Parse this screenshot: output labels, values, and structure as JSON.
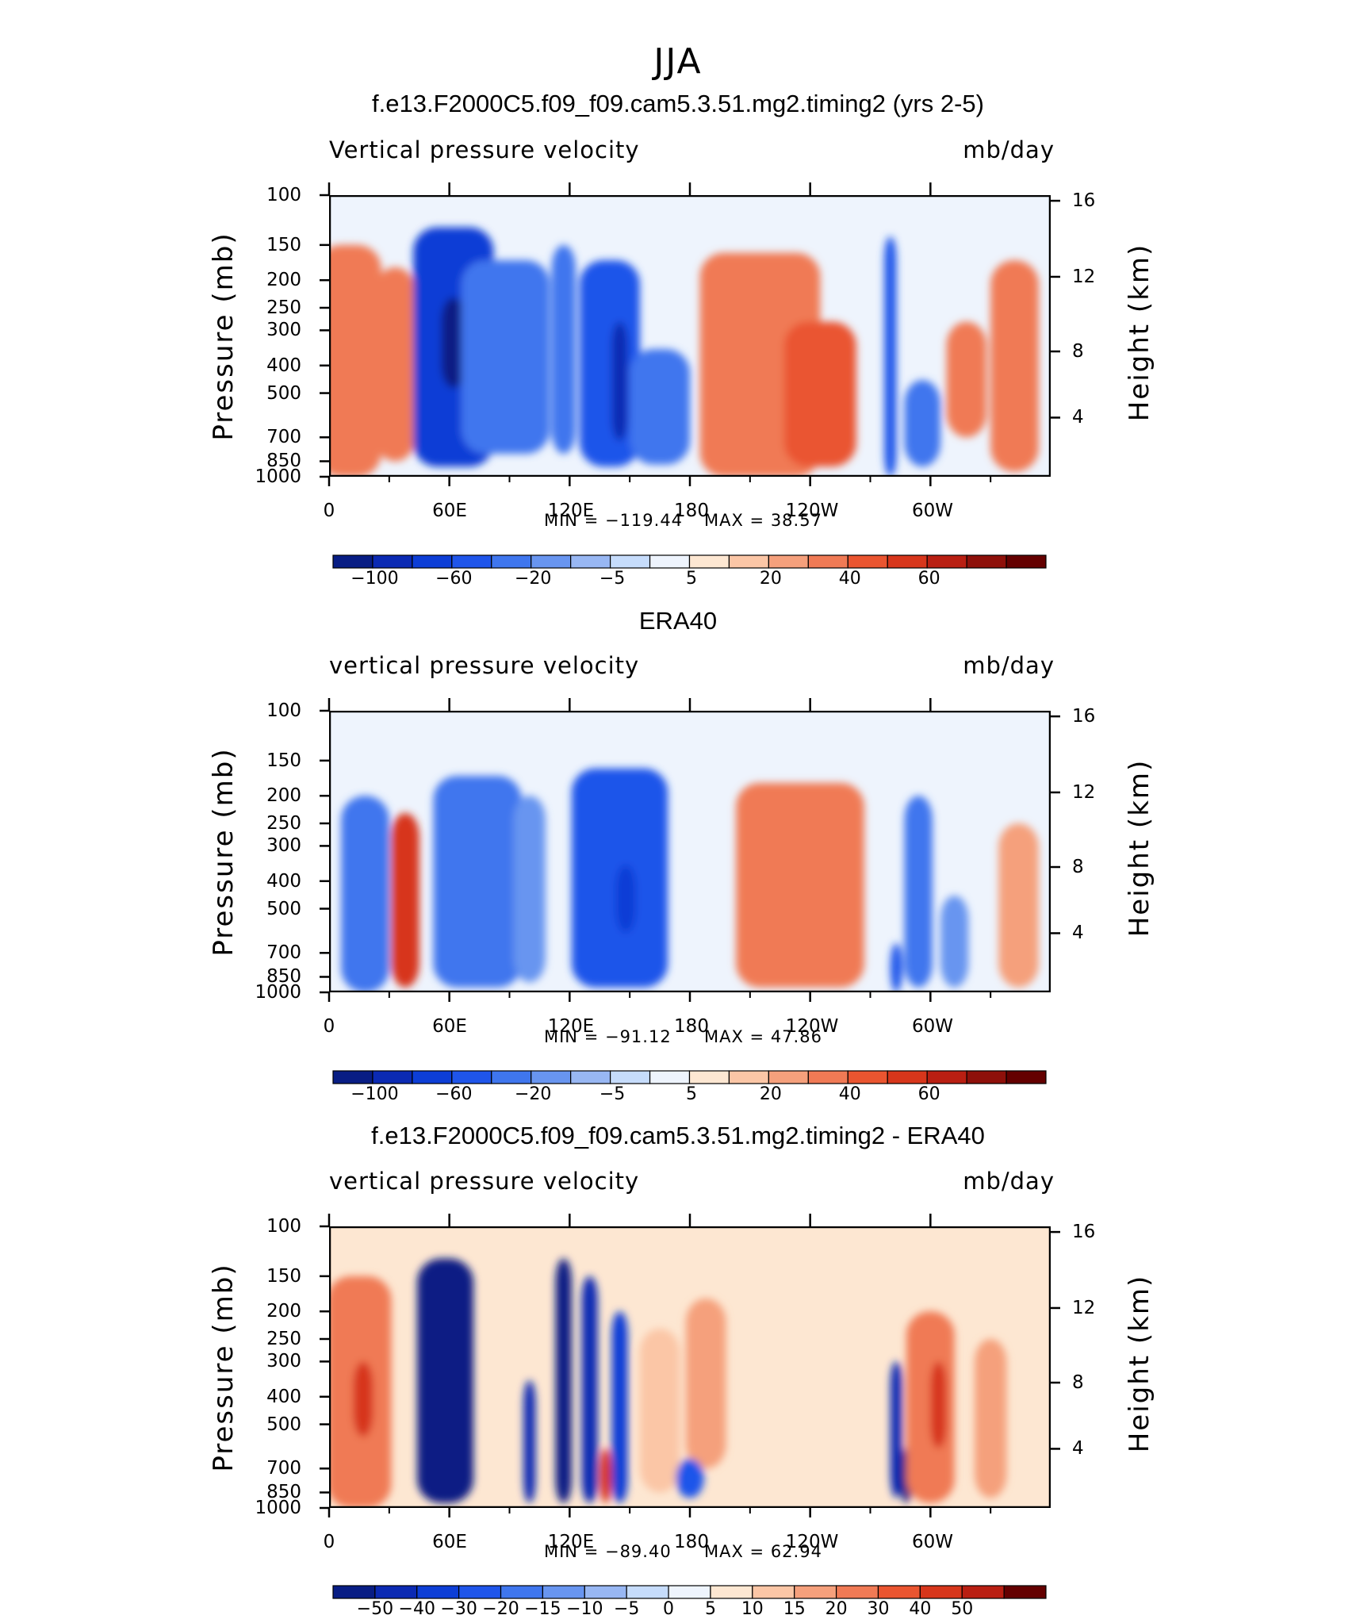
{
  "figure": {
    "title": "JJA"
  },
  "chart_data": [
    {
      "type": "heatmap",
      "title": "f.e13.F2000C5.f09_f09.cam5.3.51.mg2.timing2 (yrs 2-5)",
      "variable_label": "Vertical pressure velocity",
      "units": "mb/day",
      "xlabel": "",
      "ylabel": "Pressure (mb)",
      "y2label": "Height (km)",
      "x_ticklabels": [
        "0",
        "60E",
        "120E",
        "180",
        "120W",
        "60W"
      ],
      "y_ticklabels": [
        "100",
        "150",
        "200",
        "250",
        "300",
        "400",
        "500",
        "700",
        "850",
        "1000"
      ],
      "y2_ticklabels": [
        "16",
        "12",
        "8",
        "4"
      ],
      "min_label": "MIN = −119.44",
      "max_label": "MAX = 38.57",
      "colorbar_labels": [
        "−100",
        "−60",
        "−20",
        "−5",
        "5",
        "20",
        "40",
        "60"
      ],
      "colorbar_colors": [
        "#081d84",
        "#0b2ab3",
        "#0d3ed6",
        "#1f55ea",
        "#3f76ee",
        "#6895f0",
        "#98b7f3",
        "#c6dcfb",
        "#eef4fd",
        "#fde7d2",
        "#fbc6a6",
        "#f5a07c",
        "#f07a55",
        "#ea5530",
        "#d7361b",
        "#b91f12",
        "#8e100a",
        "#640000"
      ],
      "features": [
        {
          "lon": 10,
          "p0": 150,
          "p1": 1000,
          "v": 25,
          "w": 16
        },
        {
          "lon": 33,
          "p0": 180,
          "p1": 850,
          "v": 28,
          "w": 10
        },
        {
          "lon": 62,
          "p0": 130,
          "p1": 900,
          "v": -80,
          "w": 20
        },
        {
          "lon": 62,
          "p0": 230,
          "p1": 480,
          "v": -115,
          "w": 6
        },
        {
          "lon": 88,
          "p0": 170,
          "p1": 800,
          "v": -45,
          "w": 22
        },
        {
          "lon": 117,
          "p0": 150,
          "p1": 800,
          "v": -50,
          "w": 6
        },
        {
          "lon": 140,
          "p0": 170,
          "p1": 900,
          "v": -70,
          "w": 15
        },
        {
          "lon": 145,
          "p0": 280,
          "p1": 720,
          "v": -100,
          "w": 4
        },
        {
          "lon": 165,
          "p0": 350,
          "p1": 880,
          "v": -40,
          "w": 15
        },
        {
          "lon": 215,
          "p0": 160,
          "p1": 1000,
          "v": 28,
          "w": 30
        },
        {
          "lon": 245,
          "p0": 280,
          "p1": 900,
          "v": 34,
          "w": 18
        },
        {
          "lon": 280,
          "p0": 140,
          "p1": 1000,
          "v": -65,
          "w": 3
        },
        {
          "lon": 296,
          "p0": 450,
          "p1": 900,
          "v": -55,
          "w": 9
        },
        {
          "lon": 318,
          "p0": 280,
          "p1": 700,
          "v": 30,
          "w": 10
        },
        {
          "lon": 342,
          "p0": 170,
          "p1": 950,
          "v": 30,
          "w": 12
        }
      ]
    },
    {
      "type": "heatmap",
      "title": "ERA40",
      "variable_label": "vertical pressure velocity",
      "units": "mb/day",
      "xlabel": "",
      "ylabel": "Pressure (mb)",
      "y2label": "Height (km)",
      "x_ticklabels": [
        "0",
        "60E",
        "120E",
        "180",
        "120W",
        "60W"
      ],
      "y_ticklabels": [
        "100",
        "150",
        "200",
        "250",
        "300",
        "400",
        "500",
        "700",
        "850",
        "1000"
      ],
      "y2_ticklabels": [
        "16",
        "12",
        "8",
        "4"
      ],
      "min_label": "MIN = −91.12",
      "max_label": "MAX = 47.86",
      "colorbar_labels": [
        "−100",
        "−60",
        "−20",
        "−5",
        "5",
        "20",
        "40",
        "60"
      ],
      "colorbar_colors": [
        "#081d84",
        "#0b2ab3",
        "#0d3ed6",
        "#1f55ea",
        "#3f76ee",
        "#6895f0",
        "#98b7f3",
        "#c6dcfb",
        "#eef4fd",
        "#fde7d2",
        "#fbc6a6",
        "#f5a07c",
        "#f07a55",
        "#ea5530",
        "#d7361b",
        "#b91f12",
        "#8e100a",
        "#640000"
      ],
      "features": [
        {
          "lon": 18,
          "p0": 200,
          "p1": 1000,
          "v": -40,
          "w": 12
        },
        {
          "lon": 38,
          "p0": 230,
          "p1": 950,
          "v": 45,
          "w": 7
        },
        {
          "lon": 74,
          "p0": 170,
          "p1": 950,
          "v": -50,
          "w": 22
        },
        {
          "lon": 100,
          "p0": 200,
          "p1": 900,
          "v": -30,
          "w": 8
        },
        {
          "lon": 145,
          "p0": 160,
          "p1": 950,
          "v": -65,
          "w": 24
        },
        {
          "lon": 148,
          "p0": 350,
          "p1": 600,
          "v": -90,
          "w": 5
        },
        {
          "lon": 235,
          "p0": 180,
          "p1": 950,
          "v": 22,
          "w": 32
        },
        {
          "lon": 240,
          "p0": 280,
          "p1": 950,
          "v": 30,
          "w": 10
        },
        {
          "lon": 283,
          "p0": 650,
          "p1": 1000,
          "v": -70,
          "w": 3
        },
        {
          "lon": 294,
          "p0": 200,
          "p1": 950,
          "v": -45,
          "w": 7
        },
        {
          "lon": 312,
          "p0": 450,
          "p1": 950,
          "v": -35,
          "w": 7
        },
        {
          "lon": 344,
          "p0": 250,
          "p1": 950,
          "v": 20,
          "w": 10
        }
      ]
    },
    {
      "type": "heatmap",
      "title": "f.e13.F2000C5.f09_f09.cam5.3.51.mg2.timing2 - ERA40",
      "variable_label": "vertical pressure velocity",
      "units": "mb/day",
      "xlabel": "",
      "ylabel": "Pressure (mb)",
      "y2label": "Height (km)",
      "x_ticklabels": [
        "0",
        "60E",
        "120E",
        "180",
        "120W",
        "60W"
      ],
      "y_ticklabels": [
        "100",
        "150",
        "200",
        "250",
        "300",
        "400",
        "500",
        "700",
        "850",
        "1000"
      ],
      "y2_ticklabels": [
        "16",
        "12",
        "8",
        "4"
      ],
      "min_label": "MIN = −89.40",
      "max_label": "MAX = 62.94",
      "colorbar_labels": [
        "−50",
        "−40",
        "−30",
        "−20",
        "−15",
        "−10",
        "−5",
        "0",
        "5",
        "10",
        "15",
        "20",
        "30",
        "40",
        "50"
      ],
      "colorbar_colors": [
        "#081d84",
        "#0b2ab3",
        "#0d3ed6",
        "#1f55ea",
        "#3f76ee",
        "#6895f0",
        "#98b7f3",
        "#c6dcfb",
        "#eef4fd",
        "#fde7d2",
        "#fbc6a6",
        "#f5a07c",
        "#f07a55",
        "#ea5530",
        "#d7361b",
        "#b91f12",
        "#640000"
      ],
      "features": [
        {
          "lon": 15,
          "p0": 150,
          "p1": 1000,
          "v": 30,
          "w": 16
        },
        {
          "lon": 17,
          "p0": 300,
          "p1": 550,
          "v": 45,
          "w": 5
        },
        {
          "lon": 58,
          "p0": 130,
          "p1": 950,
          "v": -55,
          "w": 14
        },
        {
          "lon": 60,
          "p0": 200,
          "p1": 600,
          "v": -85,
          "w": 6
        },
        {
          "lon": 100,
          "p0": 350,
          "p1": 950,
          "v": -40,
          "w": 3
        },
        {
          "lon": 117,
          "p0": 130,
          "p1": 950,
          "v": -55,
          "w": 4
        },
        {
          "lon": 130,
          "p0": 150,
          "p1": 950,
          "v": -45,
          "w": 4
        },
        {
          "lon": 138,
          "p0": 600,
          "p1": 950,
          "v": 45,
          "w": 3
        },
        {
          "lon": 145,
          "p0": 200,
          "p1": 950,
          "v": -35,
          "w": 4
        },
        {
          "lon": 165,
          "p0": 230,
          "p1": 850,
          "v": 15,
          "w": 10
        },
        {
          "lon": 188,
          "p0": 180,
          "p1": 700,
          "v": 18,
          "w": 10
        },
        {
          "lon": 180,
          "p0": 650,
          "p1": 900,
          "v": -20,
          "w": 7
        },
        {
          "lon": 283,
          "p0": 300,
          "p1": 900,
          "v": -45,
          "w": 3
        },
        {
          "lon": 288,
          "p0": 600,
          "p1": 950,
          "v": -80,
          "w": 3
        },
        {
          "lon": 300,
          "p0": 200,
          "p1": 950,
          "v": 30,
          "w": 12
        },
        {
          "lon": 304,
          "p0": 300,
          "p1": 600,
          "v": 45,
          "w": 4
        },
        {
          "lon": 330,
          "p0": 250,
          "p1": 900,
          "v": 20,
          "w": 8
        }
      ]
    }
  ]
}
